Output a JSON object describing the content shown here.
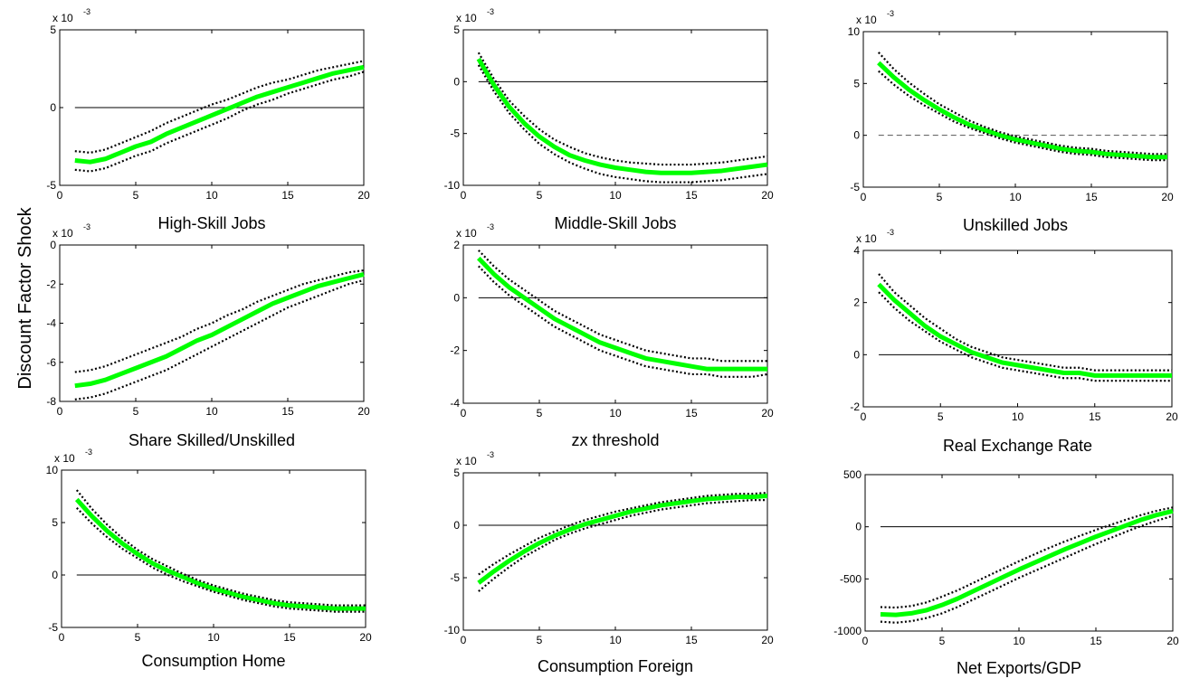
{
  "figure": {
    "ylabel": "Discount Factor Shock"
  },
  "chart_data": [
    {
      "type": "line",
      "title": "",
      "xlabel": "High-Skill Jobs",
      "ylabel": "",
      "exponent_label": "x 10",
      "exponent": "-3",
      "xlim": [
        0,
        20
      ],
      "ylim": [
        -5,
        5
      ],
      "xticks": [
        0,
        5,
        10,
        15,
        20
      ],
      "yticks": [
        -5,
        0,
        5
      ],
      "zero_line": "solid",
      "x": [
        1,
        2,
        3,
        4,
        5,
        6,
        7,
        8,
        9,
        10,
        11,
        12,
        13,
        14,
        15,
        16,
        17,
        18,
        19,
        20
      ],
      "series": [
        {
          "role": "irf",
          "values": [
            -3.4,
            -3.5,
            -3.3,
            -2.9,
            -2.5,
            -2.2,
            -1.7,
            -1.3,
            -0.9,
            -0.5,
            -0.1,
            0.3,
            0.7,
            1.0,
            1.3,
            1.6,
            1.9,
            2.2,
            2.4,
            2.6
          ]
        },
        {
          "role": "upper_band",
          "values": [
            -2.8,
            -2.9,
            -2.7,
            -2.3,
            -1.9,
            -1.5,
            -1.0,
            -0.6,
            -0.2,
            0.2,
            0.5,
            0.9,
            1.3,
            1.6,
            1.8,
            2.1,
            2.4,
            2.6,
            2.8,
            3.0
          ]
        },
        {
          "role": "lower_band",
          "values": [
            -4.0,
            -4.1,
            -3.9,
            -3.5,
            -3.1,
            -2.8,
            -2.3,
            -1.9,
            -1.5,
            -1.1,
            -0.7,
            -0.2,
            0.2,
            0.5,
            0.9,
            1.2,
            1.5,
            1.8,
            2.0,
            2.3
          ]
        }
      ]
    },
    {
      "type": "line",
      "title": "",
      "xlabel": "Middle-Skill Jobs",
      "ylabel": "",
      "exponent_label": "x 10",
      "exponent": "-3",
      "xlim": [
        0,
        20
      ],
      "ylim": [
        -10,
        5
      ],
      "xticks": [
        0,
        5,
        10,
        15,
        20
      ],
      "yticks": [
        -10,
        -5,
        0,
        5
      ],
      "zero_line": "solid",
      "x": [
        1,
        2,
        3,
        4,
        5,
        6,
        7,
        8,
        9,
        10,
        11,
        12,
        13,
        14,
        15,
        16,
        17,
        18,
        19,
        20
      ],
      "series": [
        {
          "role": "irf",
          "values": [
            2.2,
            -0.3,
            -2.4,
            -4.0,
            -5.3,
            -6.3,
            -7.1,
            -7.6,
            -8.0,
            -8.3,
            -8.5,
            -8.7,
            -8.8,
            -8.8,
            -8.8,
            -8.7,
            -8.6,
            -8.4,
            -8.2,
            -8.0
          ]
        },
        {
          "role": "upper_band",
          "values": [
            2.8,
            0.3,
            -1.8,
            -3.3,
            -4.6,
            -5.6,
            -6.3,
            -6.9,
            -7.3,
            -7.6,
            -7.8,
            -7.9,
            -8.0,
            -8.0,
            -8.0,
            -7.9,
            -7.8,
            -7.6,
            -7.4,
            -7.2
          ]
        },
        {
          "role": "lower_band",
          "values": [
            1.6,
            -0.9,
            -3.0,
            -4.6,
            -6.0,
            -7.0,
            -7.8,
            -8.4,
            -8.9,
            -9.2,
            -9.4,
            -9.6,
            -9.7,
            -9.7,
            -9.7,
            -9.6,
            -9.5,
            -9.3,
            -9.1,
            -8.9
          ]
        }
      ]
    },
    {
      "type": "line",
      "title": "",
      "xlabel": "Unskilled Jobs",
      "ylabel": "",
      "exponent_label": "x 10",
      "exponent": "-3",
      "xlim": [
        0,
        20
      ],
      "ylim": [
        -5,
        10
      ],
      "xticks": [
        0,
        5,
        10,
        15,
        20
      ],
      "yticks": [
        -5,
        0,
        5,
        10
      ],
      "zero_line": "dashed",
      "x": [
        1,
        2,
        3,
        4,
        5,
        6,
        7,
        8,
        9,
        10,
        11,
        12,
        13,
        14,
        15,
        16,
        17,
        18,
        19,
        20
      ],
      "series": [
        {
          "role": "irf",
          "values": [
            7.0,
            5.6,
            4.4,
            3.4,
            2.5,
            1.7,
            1.0,
            0.5,
            0.0,
            -0.4,
            -0.7,
            -1.0,
            -1.3,
            -1.5,
            -1.6,
            -1.8,
            -1.9,
            -2.0,
            -2.1,
            -2.1
          ]
        },
        {
          "role": "upper_band",
          "values": [
            8.0,
            6.4,
            5.1,
            4.0,
            3.0,
            2.2,
            1.4,
            0.8,
            0.3,
            -0.1,
            -0.4,
            -0.7,
            -1.0,
            -1.2,
            -1.3,
            -1.5,
            -1.6,
            -1.7,
            -1.8,
            -1.8
          ]
        },
        {
          "role": "lower_band",
          "values": [
            6.2,
            4.9,
            3.8,
            2.9,
            2.1,
            1.3,
            0.7,
            0.2,
            -0.3,
            -0.7,
            -1.0,
            -1.3,
            -1.6,
            -1.8,
            -1.9,
            -2.1,
            -2.2,
            -2.3,
            -2.4,
            -2.4
          ]
        }
      ]
    },
    {
      "type": "line",
      "title": "",
      "xlabel": "Share Skilled/Unskilled",
      "ylabel": "",
      "exponent_label": "x 10",
      "exponent": "-3",
      "xlim": [
        0,
        20
      ],
      "ylim": [
        -8,
        0
      ],
      "xticks": [
        0,
        5,
        10,
        15,
        20
      ],
      "yticks": [
        -8,
        -6,
        -4,
        -2,
        0
      ],
      "zero_line": "none",
      "x": [
        1,
        2,
        3,
        4,
        5,
        6,
        7,
        8,
        9,
        10,
        11,
        12,
        13,
        14,
        15,
        16,
        17,
        18,
        19,
        20
      ],
      "series": [
        {
          "role": "irf",
          "values": [
            -7.2,
            -7.1,
            -6.9,
            -6.6,
            -6.3,
            -6.0,
            -5.7,
            -5.3,
            -4.9,
            -4.6,
            -4.2,
            -3.8,
            -3.4,
            -3.0,
            -2.7,
            -2.4,
            -2.1,
            -1.9,
            -1.7,
            -1.5
          ]
        },
        {
          "role": "upper_band",
          "values": [
            -6.5,
            -6.4,
            -6.2,
            -5.9,
            -5.6,
            -5.3,
            -5.0,
            -4.7,
            -4.3,
            -4.0,
            -3.6,
            -3.3,
            -2.9,
            -2.6,
            -2.3,
            -2.0,
            -1.8,
            -1.6,
            -1.4,
            -1.3
          ]
        },
        {
          "role": "lower_band",
          "values": [
            -7.9,
            -7.8,
            -7.6,
            -7.3,
            -7.0,
            -6.7,
            -6.4,
            -6.0,
            -5.6,
            -5.2,
            -4.8,
            -4.4,
            -4.0,
            -3.6,
            -3.2,
            -2.9,
            -2.6,
            -2.3,
            -2.0,
            -1.8
          ]
        }
      ]
    },
    {
      "type": "line",
      "title": "",
      "xlabel": "zx threshold",
      "ylabel": "",
      "exponent_label": "x 10",
      "exponent": "-3",
      "xlim": [
        0,
        20
      ],
      "ylim": [
        -4,
        2
      ],
      "xticks": [
        0,
        5,
        10,
        15,
        20
      ],
      "yticks": [
        -4,
        -2,
        0,
        2
      ],
      "zero_line": "solid",
      "x": [
        1,
        2,
        3,
        4,
        5,
        6,
        7,
        8,
        9,
        10,
        11,
        12,
        13,
        14,
        15,
        16,
        17,
        18,
        19,
        20
      ],
      "series": [
        {
          "role": "irf",
          "values": [
            1.5,
            0.9,
            0.4,
            0.0,
            -0.4,
            -0.8,
            -1.1,
            -1.4,
            -1.7,
            -1.9,
            -2.1,
            -2.3,
            -2.4,
            -2.5,
            -2.6,
            -2.7,
            -2.7,
            -2.7,
            -2.7,
            -2.7
          ]
        },
        {
          "role": "upper_band",
          "values": [
            1.8,
            1.2,
            0.7,
            0.3,
            -0.1,
            -0.5,
            -0.8,
            -1.1,
            -1.4,
            -1.6,
            -1.8,
            -2.0,
            -2.1,
            -2.2,
            -2.3,
            -2.3,
            -2.4,
            -2.4,
            -2.4,
            -2.4
          ]
        },
        {
          "role": "lower_band",
          "values": [
            1.2,
            0.6,
            0.1,
            -0.3,
            -0.7,
            -1.1,
            -1.4,
            -1.7,
            -2.0,
            -2.2,
            -2.4,
            -2.6,
            -2.7,
            -2.8,
            -2.9,
            -2.9,
            -3.0,
            -3.0,
            -3.0,
            -2.9
          ]
        }
      ]
    },
    {
      "type": "line",
      "title": "",
      "xlabel": "Real Exchange Rate",
      "ylabel": "",
      "exponent_label": "x 10",
      "exponent": "-3",
      "xlim": [
        0,
        20
      ],
      "ylim": [
        -2,
        4
      ],
      "xticks": [
        0,
        5,
        10,
        15,
        20
      ],
      "yticks": [
        -2,
        0,
        2,
        4
      ],
      "zero_line": "solid",
      "x": [
        1,
        2,
        3,
        4,
        5,
        6,
        7,
        8,
        9,
        10,
        11,
        12,
        13,
        14,
        15,
        16,
        17,
        18,
        19,
        20
      ],
      "series": [
        {
          "role": "irf",
          "values": [
            2.7,
            2.1,
            1.6,
            1.1,
            0.7,
            0.4,
            0.1,
            -0.1,
            -0.3,
            -0.4,
            -0.5,
            -0.6,
            -0.7,
            -0.7,
            -0.8,
            -0.8,
            -0.8,
            -0.8,
            -0.8,
            -0.8
          ]
        },
        {
          "role": "upper_band",
          "values": [
            3.1,
            2.4,
            1.9,
            1.4,
            1.0,
            0.6,
            0.3,
            0.1,
            -0.1,
            -0.2,
            -0.3,
            -0.4,
            -0.5,
            -0.5,
            -0.6,
            -0.6,
            -0.6,
            -0.6,
            -0.6,
            -0.6
          ]
        },
        {
          "role": "lower_band",
          "values": [
            2.4,
            1.8,
            1.3,
            0.9,
            0.5,
            0.2,
            -0.1,
            -0.3,
            -0.5,
            -0.6,
            -0.7,
            -0.8,
            -0.9,
            -0.9,
            -1.0,
            -1.0,
            -1.0,
            -1.0,
            -1.0,
            -1.0
          ]
        }
      ]
    },
    {
      "type": "line",
      "title": "",
      "xlabel": "Consumption Home",
      "ylabel": "",
      "exponent_label": "x 10",
      "exponent": "-3",
      "xlim": [
        0,
        20
      ],
      "ylim": [
        -5,
        10
      ],
      "xticks": [
        0,
        5,
        10,
        15,
        20
      ],
      "yticks": [
        -5,
        0,
        5,
        10
      ],
      "zero_line": "solid",
      "x": [
        1,
        2,
        3,
        4,
        5,
        6,
        7,
        8,
        9,
        10,
        11,
        12,
        13,
        14,
        15,
        16,
        17,
        18,
        19,
        20
      ],
      "series": [
        {
          "role": "irf",
          "values": [
            7.2,
            5.6,
            4.2,
            3.0,
            2.0,
            1.1,
            0.4,
            -0.2,
            -0.8,
            -1.3,
            -1.7,
            -2.1,
            -2.4,
            -2.7,
            -2.9,
            -3.0,
            -3.1,
            -3.2,
            -3.2,
            -3.2
          ]
        },
        {
          "role": "upper_band",
          "values": [
            8.1,
            6.3,
            4.8,
            3.5,
            2.4,
            1.5,
            0.8,
            0.1,
            -0.5,
            -1.0,
            -1.4,
            -1.8,
            -2.1,
            -2.4,
            -2.6,
            -2.7,
            -2.8,
            -2.9,
            -2.9,
            -2.9
          ]
        },
        {
          "role": "lower_band",
          "values": [
            6.4,
            4.9,
            3.6,
            2.5,
            1.6,
            0.7,
            0.0,
            -0.6,
            -1.1,
            -1.6,
            -2.0,
            -2.4,
            -2.7,
            -3.0,
            -3.2,
            -3.3,
            -3.4,
            -3.5,
            -3.5,
            -3.5
          ]
        }
      ]
    },
    {
      "type": "line",
      "title": "",
      "xlabel": "Consumption Foreign",
      "ylabel": "",
      "exponent_label": "x 10",
      "exponent": "-3",
      "xlim": [
        0,
        20
      ],
      "ylim": [
        -10,
        5
      ],
      "xticks": [
        0,
        5,
        10,
        15,
        20
      ],
      "yticks": [
        -10,
        -5,
        0,
        5
      ],
      "zero_line": "solid",
      "x": [
        1,
        2,
        3,
        4,
        5,
        6,
        7,
        8,
        9,
        10,
        11,
        12,
        13,
        14,
        15,
        16,
        17,
        18,
        19,
        20
      ],
      "series": [
        {
          "role": "irf",
          "values": [
            -5.5,
            -4.4,
            -3.4,
            -2.5,
            -1.7,
            -1.0,
            -0.4,
            0.1,
            0.5,
            0.9,
            1.3,
            1.6,
            1.9,
            2.1,
            2.3,
            2.5,
            2.6,
            2.7,
            2.7,
            2.8
          ]
        },
        {
          "role": "upper_band",
          "values": [
            -4.7,
            -3.7,
            -2.8,
            -2.0,
            -1.2,
            -0.6,
            0.0,
            0.5,
            0.9,
            1.3,
            1.6,
            1.9,
            2.2,
            2.4,
            2.6,
            2.8,
            2.9,
            3.0,
            3.0,
            3.1
          ]
        },
        {
          "role": "lower_band",
          "values": [
            -6.3,
            -5.1,
            -4.0,
            -3.0,
            -2.2,
            -1.4,
            -0.8,
            -0.3,
            0.1,
            0.5,
            0.9,
            1.2,
            1.5,
            1.7,
            1.9,
            2.1,
            2.2,
            2.3,
            2.4,
            2.4
          ]
        }
      ]
    },
    {
      "type": "line",
      "title": "",
      "xlabel": "Net Exports/GDP",
      "ylabel": "",
      "exponent_label": "",
      "exponent": "",
      "xlim": [
        0,
        20
      ],
      "ylim": [
        -1000,
        500
      ],
      "xticks": [
        0,
        5,
        10,
        15,
        20
      ],
      "yticks": [
        -1000,
        -500,
        0,
        500
      ],
      "zero_line": "solid",
      "x": [
        1,
        2,
        3,
        4,
        5,
        6,
        7,
        8,
        9,
        10,
        11,
        12,
        13,
        14,
        15,
        16,
        17,
        18,
        19,
        20
      ],
      "series": [
        {
          "role": "irf",
          "values": [
            -840,
            -845,
            -830,
            -800,
            -750,
            -690,
            -620,
            -550,
            -480,
            -410,
            -345,
            -280,
            -215,
            -155,
            -95,
            -40,
            15,
            70,
            115,
            150
          ]
        },
        {
          "role": "upper_band",
          "values": [
            -770,
            -775,
            -760,
            -725,
            -670,
            -610,
            -540,
            -470,
            -400,
            -330,
            -265,
            -200,
            -140,
            -85,
            -30,
            20,
            70,
            115,
            155,
            185
          ]
        },
        {
          "role": "lower_band",
          "values": [
            -910,
            -920,
            -905,
            -875,
            -830,
            -770,
            -700,
            -630,
            -560,
            -490,
            -425,
            -360,
            -295,
            -230,
            -165,
            -105,
            -45,
            10,
            60,
            105
          ]
        }
      ]
    }
  ]
}
